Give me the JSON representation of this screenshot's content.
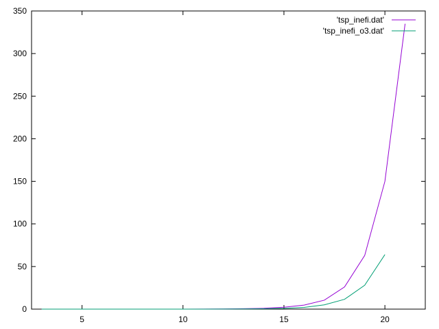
{
  "chart_data": {
    "type": "line",
    "title": "",
    "xlabel": "",
    "ylabel": "",
    "xlim": [
      2.5,
      22
    ],
    "ylim": [
      0,
      350
    ],
    "x_ticks": [
      "5",
      "10",
      "15",
      "20"
    ],
    "y_ticks": [
      "0",
      "50",
      "100",
      "150",
      "200",
      "250",
      "300",
      "350"
    ],
    "grid": false,
    "legend_position": "top-right",
    "series": [
      {
        "name": "'tsp_inefi.dat'",
        "color": "#9400d3",
        "x": [
          3,
          4,
          5,
          6,
          7,
          8,
          9,
          10,
          11,
          12,
          13,
          14,
          15,
          16,
          17,
          18,
          19,
          20,
          21
        ],
        "y": [
          0,
          0,
          0,
          0,
          0,
          0,
          0,
          0.05,
          0.1,
          0.25,
          0.5,
          1.0,
          2.2,
          4.7,
          10.5,
          26,
          63,
          150,
          335
        ]
      },
      {
        "name": "'tsp_inefi_o3.dat'",
        "color": "#009e73",
        "x": [
          3,
          4,
          5,
          6,
          7,
          8,
          9,
          10,
          11,
          12,
          13,
          14,
          15,
          16,
          17,
          18,
          19,
          20
        ],
        "y": [
          0,
          0,
          0,
          0,
          0,
          0,
          0,
          0.02,
          0.04,
          0.1,
          0.2,
          0.4,
          0.9,
          2.0,
          5.0,
          11.5,
          28,
          64
        ]
      }
    ]
  }
}
